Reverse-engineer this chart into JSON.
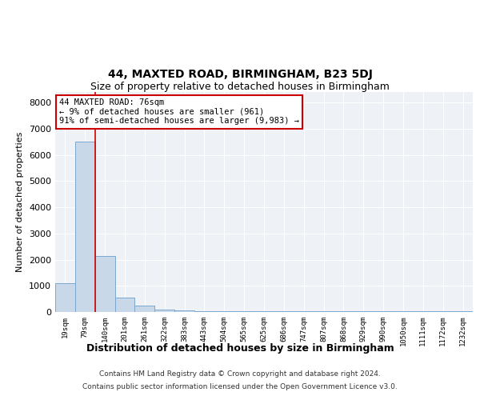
{
  "title1": "44, MAXTED ROAD, BIRMINGHAM, B23 5DJ",
  "title2": "Size of property relative to detached houses in Birmingham",
  "xlabel": "Distribution of detached houses by size in Birmingham",
  "ylabel": "Number of detached properties",
  "categories": [
    "19sqm",
    "79sqm",
    "140sqm",
    "201sqm",
    "261sqm",
    "322sqm",
    "383sqm",
    "443sqm",
    "504sqm",
    "565sqm",
    "625sqm",
    "686sqm",
    "747sqm",
    "807sqm",
    "868sqm",
    "929sqm",
    "990sqm",
    "1050sqm",
    "1111sqm",
    "1172sqm",
    "1232sqm"
  ],
  "values": [
    1100,
    6500,
    2150,
    550,
    230,
    100,
    55,
    30,
    30,
    30,
    30,
    30,
    30,
    30,
    30,
    30,
    30,
    30,
    30,
    30,
    30
  ],
  "bar_color": "#c8d8e8",
  "bar_edge_color": "#7aa8cc",
  "vline_x": 1.5,
  "annotation_text": "44 MAXTED ROAD: 76sqm\n← 9% of detached houses are smaller (961)\n91% of semi-detached houses are larger (9,983) →",
  "annotation_box_color": "white",
  "annotation_box_edge_color": "#cc0000",
  "vline_color": "#cc0000",
  "footer1": "Contains HM Land Registry data © Crown copyright and database right 2024.",
  "footer2": "Contains public sector information licensed under the Open Government Licence v3.0.",
  "ylim": [
    0,
    8400
  ],
  "yticks": [
    0,
    1000,
    2000,
    3000,
    4000,
    5000,
    6000,
    7000,
    8000
  ],
  "bg_color": "#eef2f7",
  "grid_color": "#ffffff",
  "title1_fontsize": 10,
  "title2_fontsize": 9,
  "xlabel_fontsize": 9,
  "ylabel_fontsize": 8
}
